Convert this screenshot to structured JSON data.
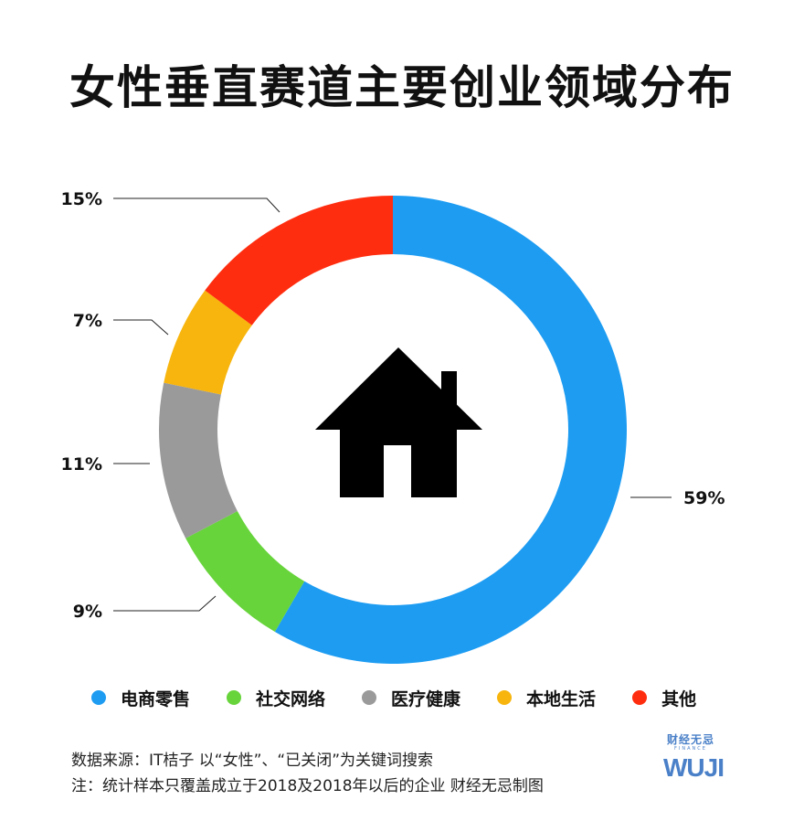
{
  "title": "女性垂直赛道主要创业领域分布",
  "chart_data": {
    "type": "pie",
    "donut": true,
    "center_icon": "house-icon",
    "slices": [
      {
        "name": "电商零售",
        "value": 59,
        "label": "59%",
        "color": "#1d9cf2"
      },
      {
        "name": "社交网络",
        "value": 9,
        "label": "9%",
        "color": "#67d43b"
      },
      {
        "name": "医疗健康",
        "value": 11,
        "label": "11%",
        "color": "#9a9a9a"
      },
      {
        "name": "本地生活",
        "value": 7,
        "label": "7%",
        "color": "#f7b50d"
      },
      {
        "name": "其他",
        "value": 15,
        "label": "15%",
        "color": "#ff2d0f"
      }
    ],
    "legend_position": "bottom"
  },
  "footer": {
    "source": "数据来源：IT桔子 以“女性”、“已关闭”为关键词搜索",
    "note": "注：统计样本只覆盖成立于2018及2018年以后的企业  财经无忌制图"
  },
  "logo": {
    "name": "财经无忌",
    "sub": "FINANCE",
    "mark": "WUJI"
  }
}
